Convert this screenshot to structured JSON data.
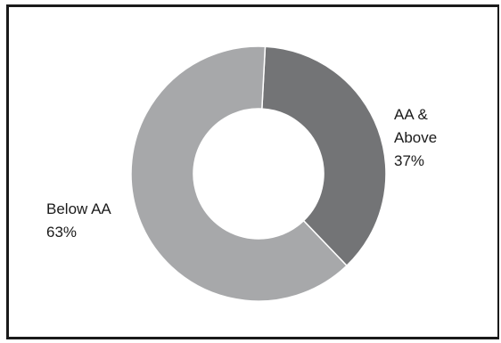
{
  "chart_data": {
    "type": "pie",
    "variant": "donut",
    "categories": [
      "AA & Above",
      "Below AA"
    ],
    "values": [
      37,
      63
    ],
    "labels": [
      {
        "category_line1": "AA &",
        "category_line2": "Above",
        "percent": "37%"
      },
      {
        "category_line1": "Below AA",
        "percent": "63%"
      }
    ],
    "colors": [
      "#737476",
      "#a7a8aa"
    ],
    "start_angle_deg": 3
  }
}
